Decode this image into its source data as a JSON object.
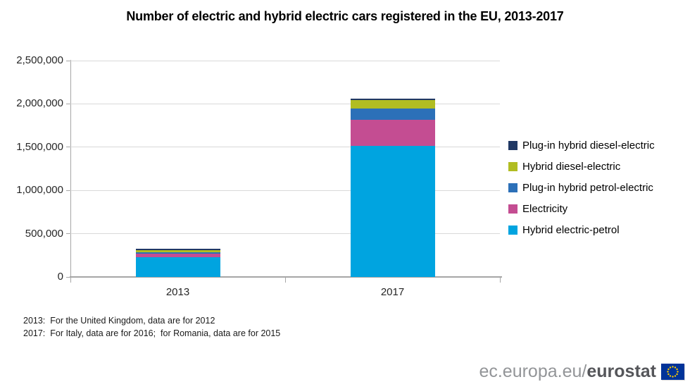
{
  "title": "Number of electric and hybrid electric cars registered in the EU, 2013-2017",
  "chart_data": {
    "type": "bar",
    "stacked": true,
    "title": "Number of electric and hybrid electric cars registered in the EU, 2013-2017",
    "categories": [
      "2013",
      "2017"
    ],
    "series": [
      {
        "name": "Hybrid electric-petrol",
        "color": "#00a4e0",
        "values": [
          225000,
          1515000
        ]
      },
      {
        "name": "Electricity",
        "color": "#c44d92",
        "values": [
          45000,
          300000
        ]
      },
      {
        "name": "Plug-in hybrid petrol-electric",
        "color": "#2c70b8",
        "values": [
          16000,
          130000
        ]
      },
      {
        "name": "Hybrid diesel-electric",
        "color": "#b1bd22",
        "values": [
          25000,
          100000
        ]
      },
      {
        "name": "Plug-in hybrid diesel-electric",
        "color": "#203864",
        "values": [
          15000,
          15000
        ]
      }
    ],
    "totals": [
      326000,
      2060000
    ],
    "ylim": [
      0,
      2500000
    ],
    "ytick_step": 500000,
    "ytick_labels": [
      "0",
      "500,000",
      "1,000,000",
      "1,500,000",
      "2,000,000",
      "2,500,000"
    ],
    "xlabel": "",
    "ylabel": "",
    "grid": true,
    "legend_position": "right",
    "legend_order_top_to_bottom": [
      "Plug-in hybrid diesel-electric",
      "Hybrid diesel-electric",
      "Plug-in hybrid petrol-electric",
      "Electricity",
      "Hybrid electric-petrol"
    ]
  },
  "footnotes": [
    "2013:  For the United Kingdom, data are for 2012",
    "2017:  For Italy, data are for 2016;  for Romania, data are for 2015"
  ],
  "branding": {
    "url_prefix": "ec.europa.eu/",
    "brand": "eurostat",
    "flag_colors": {
      "field": "#003399",
      "stars": "#ffcc00"
    }
  }
}
